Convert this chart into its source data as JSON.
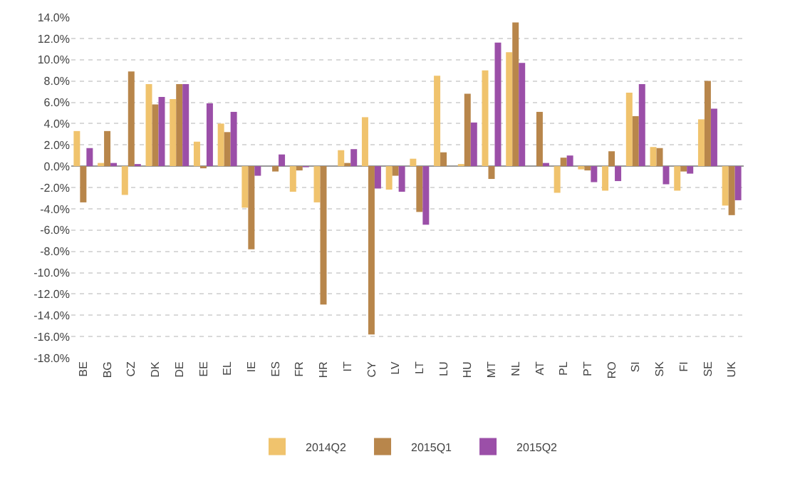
{
  "chart_data": {
    "type": "bar",
    "categories": [
      "BE",
      "BG",
      "CZ",
      "DK",
      "DE",
      "EE",
      "EL",
      "IE",
      "ES",
      "FR",
      "HR",
      "IT",
      "CY",
      "LV",
      "LT",
      "LU",
      "HU",
      "MT",
      "NL",
      "AT",
      "PL",
      "PT",
      "RO",
      "SI",
      "SK",
      "FI",
      "SE",
      "UK"
    ],
    "series": [
      {
        "name": "2014Q2",
        "color": "#f0c36d",
        "values": [
          3.3,
          0.3,
          -2.7,
          7.7,
          6.3,
          2.3,
          4.0,
          -3.9,
          0.0,
          -2.4,
          -3.4,
          1.5,
          4.6,
          -2.2,
          0.7,
          8.5,
          0.2,
          9.0,
          10.7,
          0.0,
          -2.5,
          -0.3,
          -2.3,
          6.9,
          1.8,
          -2.3,
          4.4,
          -3.7
        ]
      },
      {
        "name": "2015Q1",
        "color": "#b8864b",
        "values": [
          -3.4,
          3.3,
          8.9,
          5.8,
          7.7,
          -0.2,
          3.2,
          -7.8,
          -0.5,
          -0.4,
          -13.0,
          0.3,
          -15.8,
          -0.9,
          -4.3,
          1.3,
          6.8,
          -1.2,
          13.5,
          5.1,
          0.8,
          -0.4,
          1.4,
          4.7,
          1.7,
          -0.5,
          8.0,
          -4.6
        ]
      },
      {
        "name": "2015Q2",
        "color": "#9b4fa8",
        "values": [
          1.7,
          0.3,
          0.2,
          6.5,
          7.7,
          5.9,
          5.1,
          -0.9,
          1.1,
          -0.1,
          0.0,
          1.6,
          -2.1,
          -2.4,
          -5.5,
          0.0,
          4.1,
          11.6,
          9.7,
          0.3,
          1.0,
          -1.5,
          -1.4,
          7.7,
          -1.7,
          -0.7,
          5.4,
          -3.2
        ]
      }
    ],
    "ylim": [
      -18,
      14
    ],
    "yticks": [
      {
        "value": -18,
        "label": "-18.0%"
      },
      {
        "value": -16,
        "label": "-16.0%"
      },
      {
        "value": -14,
        "label": "-14.0%"
      },
      {
        "value": -12,
        "label": "-12.0%"
      },
      {
        "value": -10,
        "label": "-10.0%"
      },
      {
        "value": -8,
        "label": "-8.0%"
      },
      {
        "value": -6,
        "label": "-6.0%"
      },
      {
        "value": -4,
        "label": "-4.0%"
      },
      {
        "value": -2,
        "label": "-2.0%"
      },
      {
        "value": 0,
        "label": "0.0%"
      },
      {
        "value": 2,
        "label": "2.0%"
      },
      {
        "value": 4,
        "label": "4.0%"
      },
      {
        "value": 6,
        "label": "6.0%"
      },
      {
        "value": 8,
        "label": "8.0%"
      },
      {
        "value": 10,
        "label": "10.0%"
      },
      {
        "value": 12,
        "label": "12.0%"
      },
      {
        "value": 14,
        "label": "14.0%"
      }
    ],
    "grid": "y",
    "legend": "bottom"
  }
}
